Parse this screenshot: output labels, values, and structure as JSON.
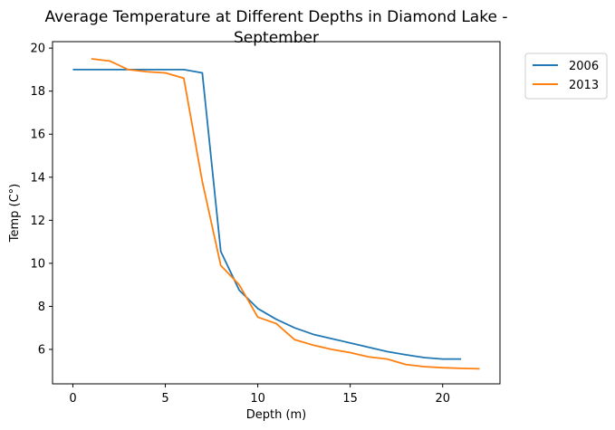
{
  "chart_data": {
    "type": "line",
    "title": [
      "Average Temperature at Different Depths in Diamond Lake -",
      "September"
    ],
    "xlabel": "Depth (m)",
    "ylabel": "Temp (C°)",
    "xlim": [
      -1.1,
      23.1
    ],
    "ylim": [
      4.4,
      20.3
    ],
    "xticks": [
      0,
      5,
      10,
      15,
      20
    ],
    "yticks": [
      6,
      8,
      10,
      12,
      14,
      16,
      18,
      20
    ],
    "grid": false,
    "legend_position": "outside-top-right",
    "series": [
      {
        "name": "2006",
        "color": "#1f77b4",
        "x": [
          0,
          1,
          2,
          3,
          4,
          5,
          6,
          7,
          8,
          9,
          10,
          11,
          12,
          13,
          14,
          15,
          16,
          17,
          18,
          19,
          20,
          21
        ],
        "y": [
          19.0,
          19.0,
          19.0,
          19.0,
          19.0,
          19.0,
          19.0,
          18.85,
          10.55,
          8.75,
          7.9,
          7.4,
          7.0,
          6.7,
          6.5,
          6.3,
          6.1,
          5.9,
          5.75,
          5.62,
          5.55,
          5.55
        ]
      },
      {
        "name": "2013",
        "color": "#ff7f0e",
        "x": [
          1,
          2,
          3,
          4,
          5,
          6,
          7,
          8,
          9,
          10,
          11,
          12,
          13,
          14,
          15,
          16,
          17,
          18,
          19,
          20,
          21,
          22
        ],
        "y": [
          19.5,
          19.4,
          19.0,
          18.9,
          18.85,
          18.6,
          13.8,
          9.9,
          9.0,
          7.5,
          7.2,
          6.45,
          6.2,
          6.0,
          5.85,
          5.65,
          5.55,
          5.3,
          5.2,
          5.15,
          5.12,
          5.1
        ]
      }
    ]
  }
}
